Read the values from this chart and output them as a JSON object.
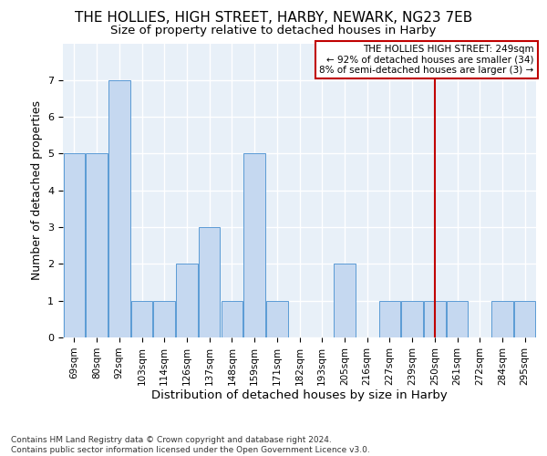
{
  "title": "THE HOLLIES, HIGH STREET, HARBY, NEWARK, NG23 7EB",
  "subtitle": "Size of property relative to detached houses in Harby",
  "xlabel": "Distribution of detached houses by size in Harby",
  "ylabel": "Number of detached properties",
  "categories": [
    "69sqm",
    "80sqm",
    "92sqm",
    "103sqm",
    "114sqm",
    "126sqm",
    "137sqm",
    "148sqm",
    "159sqm",
    "171sqm",
    "182sqm",
    "193sqm",
    "205sqm",
    "216sqm",
    "227sqm",
    "239sqm",
    "250sqm",
    "261sqm",
    "272sqm",
    "284sqm",
    "295sqm"
  ],
  "values": [
    5,
    5,
    7,
    1,
    1,
    2,
    3,
    1,
    5,
    1,
    0,
    0,
    2,
    0,
    1,
    1,
    1,
    1,
    0,
    1,
    1
  ],
  "bar_color": "#c5d8f0",
  "bar_edge_color": "#5b9bd5",
  "bar_edge_width": 0.7,
  "vline_x_index": 16,
  "vline_color": "#c00000",
  "annotation_title": "THE HOLLIES HIGH STREET: 249sqm",
  "annotation_line1": "← 92% of detached houses are smaller (34)",
  "annotation_line2": "8% of semi-detached houses are larger (3) →",
  "annotation_box_color": "#c00000",
  "footer_line1": "Contains HM Land Registry data © Crown copyright and database right 2024.",
  "footer_line2": "Contains public sector information licensed under the Open Government Licence v3.0.",
  "ylim": [
    0,
    8
  ],
  "yticks": [
    0,
    1,
    2,
    3,
    4,
    5,
    6,
    7
  ],
  "background_color": "#e8f0f8",
  "grid_color": "#ffffff",
  "title_fontsize": 11,
  "subtitle_fontsize": 9.5,
  "ylabel_fontsize": 9,
  "xlabel_fontsize": 9.5,
  "tick_fontsize": 7.5,
  "annotation_fontsize": 7.5,
  "footer_fontsize": 6.5
}
